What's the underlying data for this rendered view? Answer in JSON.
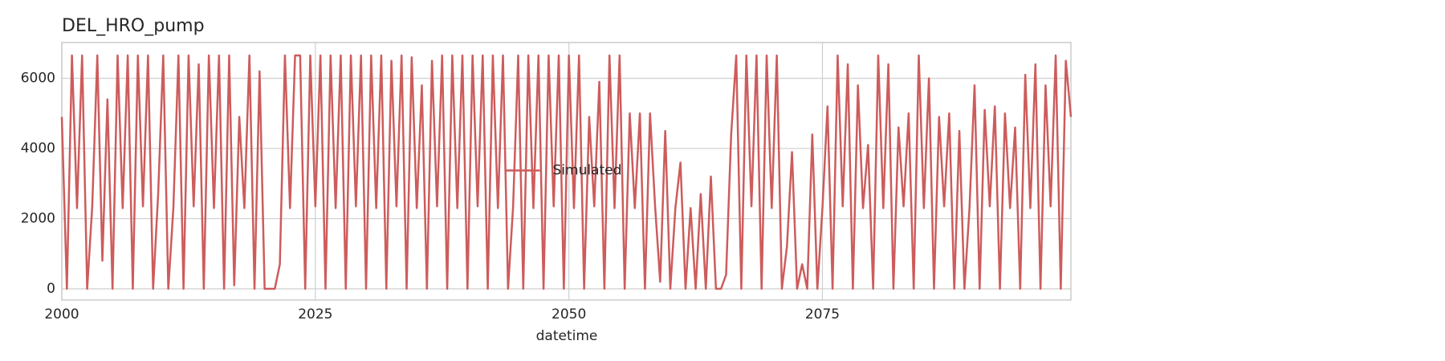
{
  "chart_data": {
    "type": "line",
    "title": "DEL_HRO_pump",
    "x_label": "datetime",
    "x": [
      2000,
      2000.5,
      2001,
      2001.5,
      2002,
      2002.5,
      2003,
      2003.5,
      2004,
      2004.5,
      2005,
      2005.5,
      2006,
      2006.5,
      2007,
      2007.5,
      2008,
      2008.5,
      2009,
      2009.5,
      2010,
      2010.5,
      2011,
      2011.5,
      2012,
      2012.5,
      2013,
      2013.5,
      2014,
      2014.5,
      2015,
      2015.5,
      2016,
      2016.5,
      2017,
      2017.5,
      2018,
      2018.5,
      2019,
      2019.5,
      2020,
      2020.5,
      2021,
      2021.5,
      2022,
      2022.5,
      2023,
      2023.5,
      2024,
      2024.5,
      2025,
      2025.5,
      2026,
      2026.5,
      2027,
      2027.5,
      2028,
      2028.5,
      2029,
      2029.5,
      2030,
      2030.5,
      2031,
      2031.5,
      2032,
      2032.5,
      2033,
      2033.5,
      2034,
      2034.5,
      2035,
      2035.5,
      2036,
      2036.5,
      2037,
      2037.5,
      2038,
      2038.5,
      2039,
      2039.5,
      2040,
      2040.5,
      2041,
      2041.5,
      2042,
      2042.5,
      2043,
      2043.5,
      2044,
      2044.5,
      2045,
      2045.5,
      2046,
      2046.5,
      2047,
      2047.5,
      2048,
      2048.5,
      2049,
      2049.5,
      2050,
      2050.5,
      2051,
      2051.5,
      2052,
      2052.5,
      2053,
      2053.5,
      2054,
      2054.5,
      2055,
      2055.5,
      2056,
      2056.5,
      2057,
      2057.5,
      2058,
      2058.5,
      2059,
      2059.5,
      2060,
      2060.5,
      2061,
      2061.5,
      2062,
      2062.5,
      2063,
      2063.5,
      2064,
      2064.5,
      2065,
      2065.5,
      2066,
      2066.5,
      2067,
      2067.5,
      2068,
      2068.5,
      2069,
      2069.5,
      2070,
      2070.5,
      2071,
      2071.5,
      2072,
      2072.5,
      2073,
      2073.5,
      2074,
      2074.5,
      2075,
      2075.5,
      2076,
      2076.5,
      2077,
      2077.5,
      2078,
      2078.5,
      2079,
      2079.5,
      2080,
      2080.5,
      2081,
      2081.5,
      2082,
      2082.5,
      2083,
      2083.5,
      2084,
      2084.5,
      2085,
      2085.5,
      2086,
      2086.5,
      2087,
      2087.5,
      2088,
      2088.5,
      2089,
      2089.5,
      2090,
      2090.5,
      2091,
      2091.5,
      2092,
      2092.5,
      2093,
      2093.5,
      2094,
      2094.5,
      2095,
      2095.5,
      2096,
      2096.5,
      2097,
      2097.5,
      2098,
      2098.5,
      2099,
      2099.5
    ],
    "series": [
      {
        "name": "Simulated",
        "color": "#cd5c5c",
        "values": [
          4900,
          0,
          6650,
          2300,
          6650,
          0,
          2350,
          6650,
          800,
          5400,
          0,
          6650,
          2300,
          6650,
          0,
          6650,
          2350,
          6650,
          0,
          2700,
          6650,
          0,
          2300,
          6650,
          0,
          6650,
          2350,
          6400,
          0,
          6650,
          2300,
          6650,
          0,
          6650,
          100,
          4900,
          2300,
          6650,
          0,
          6200,
          0,
          0,
          0,
          700,
          6650,
          2300,
          6650,
          6650,
          0,
          6650,
          2350,
          6650,
          0,
          6650,
          2300,
          6650,
          0,
          6650,
          2350,
          6650,
          0,
          6650,
          2300,
          6650,
          0,
          6500,
          2350,
          6650,
          0,
          6600,
          2300,
          5800,
          0,
          6500,
          2350,
          6650,
          0,
          6650,
          2300,
          6650,
          0,
          6650,
          2350,
          6650,
          0,
          6650,
          2300,
          6650,
          0,
          2350,
          6650,
          0,
          6650,
          2300,
          6650,
          0,
          6650,
          2350,
          6650,
          0,
          6650,
          2300,
          6650,
          0,
          4900,
          2350,
          5900,
          0,
          6650,
          2300,
          6650,
          0,
          5000,
          2300,
          5000,
          0,
          5000,
          2350,
          200,
          4500,
          0,
          2300,
          3600,
          0,
          2300,
          0,
          2700,
          0,
          3200,
          0,
          0,
          400,
          4400,
          6650,
          0,
          6650,
          2350,
          6650,
          0,
          6650,
          2300,
          6650,
          0,
          1200,
          3900,
          0,
          700,
          0,
          4400,
          0,
          2300,
          5200,
          0,
          6650,
          2350,
          6400,
          0,
          5800,
          2300,
          4100,
          0,
          6650,
          2300,
          6400,
          0,
          4600,
          2350,
          5000,
          0,
          6650,
          2300,
          6000,
          0,
          4900,
          2350,
          5000,
          0,
          4500,
          0,
          2300,
          5800,
          0,
          5100,
          2350,
          5200,
          0,
          5000,
          2300,
          4600,
          0,
          6100,
          2300,
          6400,
          0,
          5800,
          2350,
          6650,
          0,
          6500,
          4900
        ]
      }
    ],
    "xlim": [
      2000,
      2099.5
    ],
    "xticks": [
      2000,
      2025,
      2050,
      2075
    ],
    "ylim": [
      -320,
      7020
    ],
    "yticks": [
      0,
      2000,
      4000,
      6000
    ],
    "grid": true,
    "legend": "center"
  }
}
